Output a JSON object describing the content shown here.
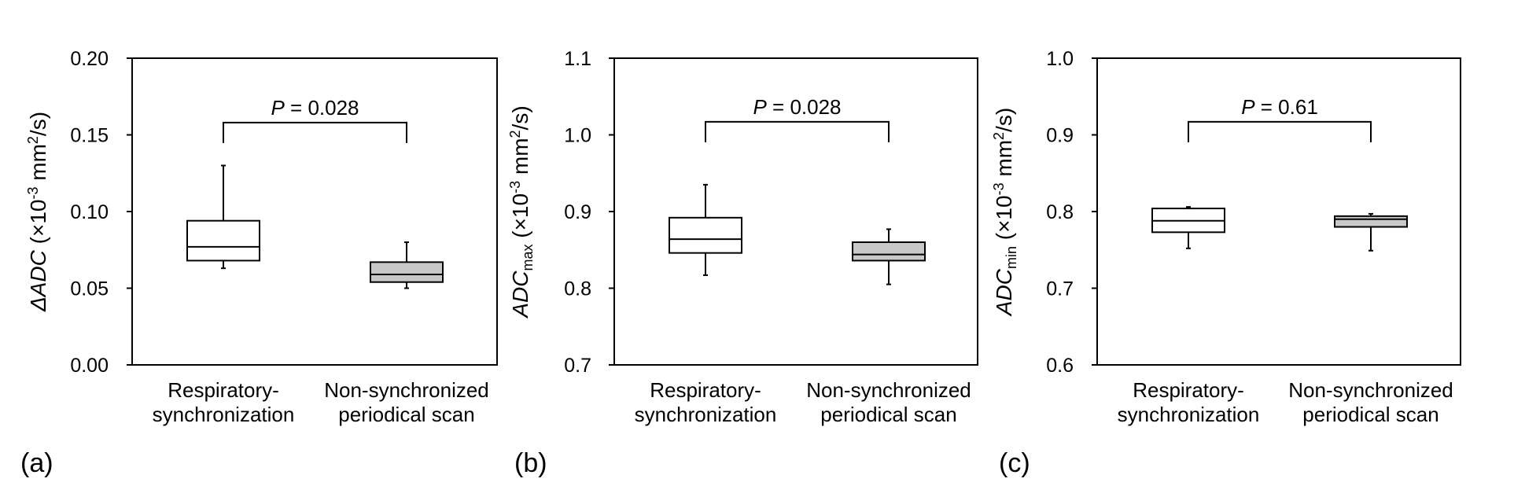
{
  "chart_data": [
    {
      "type": "box",
      "panel_label": "(a)",
      "ylabel": {
        "prefix": "ΔADC",
        "sub": "",
        "unit_pre": " (×10",
        "exp": "-3",
        "unit_mid": " mm",
        "exp2": "2",
        "unit_post": "/s)"
      },
      "ylim": [
        0.0,
        0.2
      ],
      "yticks": [
        0.0,
        0.05,
        0.1,
        0.15,
        0.2
      ],
      "ytick_labels": [
        "0.00",
        "0.05",
        "0.10",
        "0.15",
        "0.20"
      ],
      "categories": [
        [
          "Respiratory-",
          "synchronization"
        ],
        [
          "Non-synchronized",
          "periodical scan"
        ]
      ],
      "boxes": [
        {
          "min": 0.063,
          "q1": 0.068,
          "median": 0.077,
          "q3": 0.094,
          "max": 0.13,
          "fill": "#ffffff"
        },
        {
          "min": 0.05,
          "q1": 0.054,
          "median": 0.059,
          "q3": 0.067,
          "max": 0.08,
          "fill": "#c8c8c8"
        }
      ],
      "bracket": {
        "y": 0.158,
        "label_italic": "P",
        "label_rest": " = 0.028"
      }
    },
    {
      "type": "box",
      "panel_label": "(b)",
      "ylabel": {
        "prefix": "ADC",
        "sub": "max",
        "unit_pre": " (×10",
        "exp": "-3",
        "unit_mid": " mm",
        "exp2": "2",
        "unit_post": "/s)"
      },
      "ylim": [
        0.7,
        1.1
      ],
      "yticks": [
        0.7,
        0.8,
        0.9,
        1.0,
        1.1
      ],
      "ytick_labels": [
        "0.7",
        "0.8",
        "0.9",
        "1.0",
        "1.1"
      ],
      "categories": [
        [
          "Respiratory-",
          "synchronization"
        ],
        [
          "Non-synchronized",
          "periodical scan"
        ]
      ],
      "boxes": [
        {
          "min": 0.817,
          "q1": 0.846,
          "median": 0.864,
          "q3": 0.892,
          "max": 0.935,
          "fill": "#ffffff"
        },
        {
          "min": 0.805,
          "q1": 0.836,
          "median": 0.844,
          "q3": 0.86,
          "max": 0.877,
          "fill": "#c8c8c8"
        }
      ],
      "bracket": {
        "y": 1.017,
        "label_italic": "P",
        "label_rest": " = 0.028"
      }
    },
    {
      "type": "box",
      "panel_label": "(c)",
      "ylabel": {
        "prefix": "ADC",
        "sub": "min",
        "unit_pre": " (×10",
        "exp": "-3",
        "unit_mid": " mm",
        "exp2": "2",
        "unit_post": "/s)"
      },
      "ylim": [
        0.6,
        1.0
      ],
      "yticks": [
        0.6,
        0.7,
        0.8,
        0.9,
        1.0
      ],
      "ytick_labels": [
        "0.6",
        "0.7",
        "0.8",
        "0.9",
        "1.0"
      ],
      "categories": [
        [
          "Respiratory-",
          "synchronization"
        ],
        [
          "Non-synchronized",
          "periodical scan"
        ]
      ],
      "boxes": [
        {
          "min": 0.752,
          "q1": 0.773,
          "median": 0.788,
          "q3": 0.804,
          "max": 0.806,
          "fill": "#ffffff"
        },
        {
          "min": 0.749,
          "q1": 0.78,
          "median": 0.79,
          "q3": 0.794,
          "max": 0.797,
          "fill": "#c8c8c8"
        }
      ],
      "bracket": {
        "y": 0.917,
        "label_italic": "P",
        "label_rest": " = 0.61"
      }
    }
  ]
}
